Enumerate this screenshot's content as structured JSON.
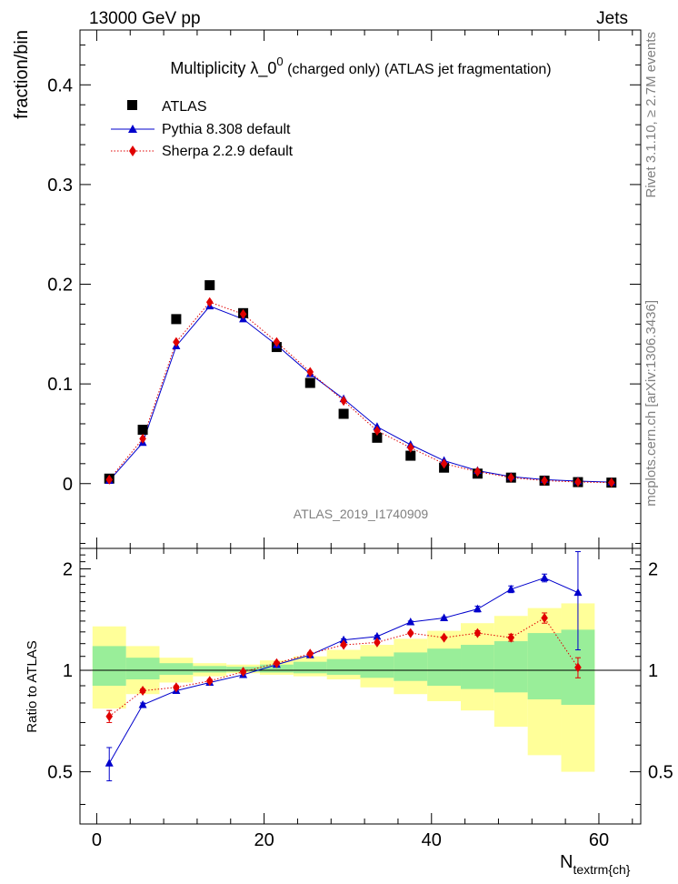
{
  "header": {
    "energy_label": "13000 GeV pp",
    "process_label": "Jets",
    "side_label_events": "Rivet 3.1.10, ≥ 2.7M events",
    "side_label_source": "mcplots.cern.ch [arXiv:1306.3436]",
    "analysis_id": "ATLAS_2019_I1740909"
  },
  "colors": {
    "atlas": "#000000",
    "pythia": "#0000cc",
    "sherpa": "#e00000",
    "band_inner": "#99ee99",
    "band_outer": "#ffff99"
  },
  "chart_data": [
    {
      "type": "scatter",
      "title": "Multiplicity  λ_0⁰ (charged only) (ATLAS jet fragmentation)",
      "title_main": "Multiplicity  λ_0",
      "title_sup": "0",
      "title_rest": " (charged only) (ATLAS jet fragmentation)",
      "ylabel": "fraction/bin",
      "xlabel": "",
      "xlim": [
        -2,
        65
      ],
      "ylim": [
        -0.065,
        0.455
      ],
      "yticks": [
        0,
        0.1,
        0.2,
        0.3,
        0.4
      ],
      "ytick_labels": [
        "0",
        "0.1",
        "0.2",
        "0.3",
        "0.4"
      ],
      "legend_position": "top-left",
      "x": [
        1.5,
        5.5,
        9.5,
        13.5,
        17.5,
        21.5,
        25.5,
        29.5,
        33.5,
        37.5,
        41.5,
        45.5,
        49.5,
        53.5,
        57.5,
        61.5
      ],
      "series": [
        {
          "name": "ATLAS",
          "marker": "square",
          "values": [
            0.005,
            0.054,
            0.165,
            0.199,
            0.171,
            0.137,
            0.101,
            0.07,
            0.046,
            0.028,
            0.016,
            0.01,
            0.006,
            0.003,
            0.0015,
            0.001
          ]
        },
        {
          "name": "Pythia 8.308 default",
          "marker": "triangle",
          "values": [
            0.003,
            0.041,
            0.138,
            0.178,
            0.165,
            0.139,
            0.11,
            0.085,
            0.057,
            0.039,
            0.023,
            0.013,
            0.007,
            0.004,
            0.0025,
            0.0015
          ]
        },
        {
          "name": "Sherpa 2.2.9 default",
          "marker": "diamond",
          "values": [
            0.004,
            0.045,
            0.142,
            0.182,
            0.17,
            0.142,
            0.112,
            0.083,
            0.053,
            0.036,
            0.02,
            0.012,
            0.006,
            0.003,
            0.0016,
            0.001
          ]
        }
      ]
    },
    {
      "type": "scatter",
      "title": "",
      "ylabel": "Ratio to ATLAS",
      "xlabel": "N",
      "xlabel_sub": "textrm{ch}",
      "xlim": [
        -2,
        65
      ],
      "ylim": [
        0.35,
        2.3
      ],
      "yticks": [
        0.5,
        1,
        2
      ],
      "ytick_labels": [
        "0.5",
        "1",
        "2"
      ],
      "xticks": [
        0,
        20,
        40,
        60
      ],
      "xtick_labels": [
        "0",
        "20",
        "40",
        "60"
      ],
      "bin_edges": [
        -0.5,
        3.5,
        7.5,
        11.5,
        15.5,
        19.5,
        23.5,
        27.5,
        31.5,
        35.5,
        39.5,
        43.5,
        47.5,
        51.5,
        55.5,
        59.5
      ],
      "band_inner_lo": [
        0.9,
        0.94,
        0.97,
        0.985,
        0.99,
        0.985,
        0.98,
        0.97,
        0.95,
        0.93,
        0.9,
        0.88,
        0.86,
        0.82,
        0.79
      ],
      "band_inner_hi": [
        1.18,
        1.09,
        1.05,
        1.03,
        1.025,
        1.04,
        1.06,
        1.08,
        1.1,
        1.13,
        1.16,
        1.19,
        1.22,
        1.29,
        1.32
      ],
      "band_outer_lo": [
        0.77,
        0.85,
        0.92,
        0.96,
        0.98,
        0.97,
        0.96,
        0.94,
        0.89,
        0.85,
        0.81,
        0.76,
        0.68,
        0.56,
        0.5
      ],
      "band_outer_hi": [
        1.35,
        1.18,
        1.09,
        1.05,
        1.04,
        1.07,
        1.1,
        1.15,
        1.19,
        1.24,
        1.31,
        1.38,
        1.45,
        1.53,
        1.58
      ],
      "x": [
        1.5,
        5.5,
        9.5,
        13.5,
        17.5,
        21.5,
        25.5,
        29.5,
        33.5,
        37.5,
        41.5,
        45.5,
        49.5,
        53.5,
        57.5
      ],
      "series": [
        {
          "name": "Pythia 8.308 default",
          "marker": "triangle",
          "values": [
            0.53,
            0.79,
            0.87,
            0.92,
            0.97,
            1.04,
            1.11,
            1.23,
            1.26,
            1.39,
            1.43,
            1.52,
            1.74,
            1.88,
            1.7
          ],
          "errors": [
            0.06,
            0.01,
            0.01,
            0.01,
            0.01,
            0.01,
            0.01,
            0.01,
            0.01,
            0.01,
            0.01,
            0.03,
            0.04,
            0.05,
            0.55
          ]
        },
        {
          "name": "Sherpa 2.2.9 default",
          "marker": "diamond",
          "values": [
            0.73,
            0.87,
            0.89,
            0.93,
            0.99,
            1.05,
            1.12,
            1.19,
            1.21,
            1.29,
            1.25,
            1.29,
            1.25,
            1.43,
            1.02
          ],
          "errors": [
            0.03,
            0.01,
            0.01,
            0.01,
            0.01,
            0.01,
            0.01,
            0.01,
            0.01,
            0.01,
            0.01,
            0.02,
            0.03,
            0.05,
            0.07
          ]
        }
      ]
    }
  ]
}
